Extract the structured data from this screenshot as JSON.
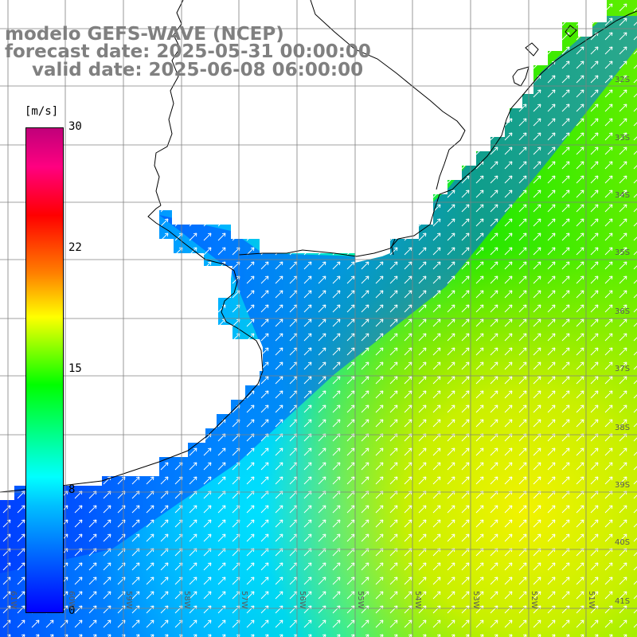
{
  "titles": {
    "line1": "modelo GEFS-WAVE (NCEP)",
    "line2": "forecast date: 2025-05-31 00:00:00",
    "line3": "valid date: 2025-06-08 06:00:00"
  },
  "colorbar": {
    "unit": "[m/s]",
    "ticks": [
      "30",
      "22",
      "15",
      "8",
      "0"
    ],
    "colors": [
      "#0000ff",
      "#00bfff",
      "#00ffff",
      "#00ff00",
      "#ffff00",
      "#ff8000",
      "#ff0000",
      "#c0007a"
    ]
  },
  "lat_labels": [
    "32S",
    "33S",
    "34S",
    "35S",
    "36S",
    "37S",
    "38S",
    "39S",
    "40S",
    "41S"
  ],
  "lon_labels": [
    "61W",
    "60W",
    "59W",
    "58W",
    "57W",
    "56W",
    "55W",
    "54W",
    "53W",
    "52W",
    "51W"
  ],
  "map": {
    "land_color": "#ffffff",
    "coastline_color": "#000000",
    "grid_color": "#808080",
    "arrow_color": "#ffffff",
    "wind_direction": "toward-northeast"
  }
}
